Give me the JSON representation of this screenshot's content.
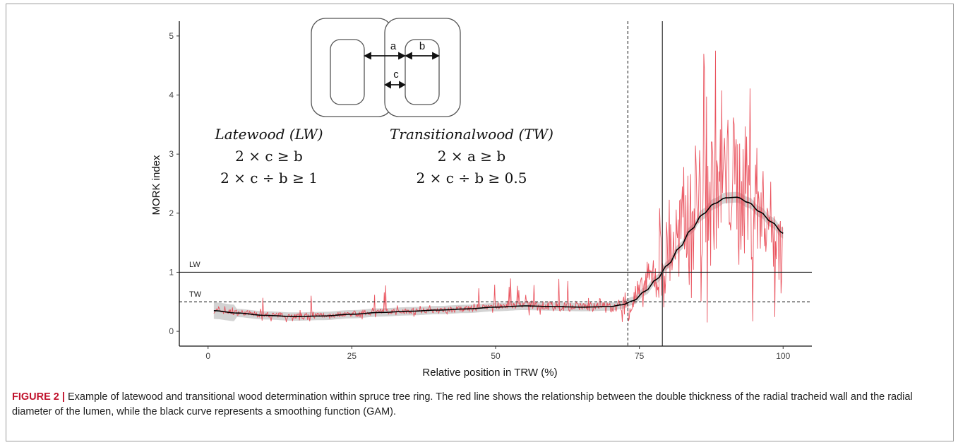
{
  "chart_data": {
    "type": "line",
    "xlabel": "Relative position in TRW (%)",
    "ylabel": "MORK index",
    "xlim": [
      -5,
      105
    ],
    "ylim": [
      -0.25,
      5.25
    ],
    "x_ticks": [
      "0",
      "25",
      "50",
      "75",
      "100"
    ],
    "y_ticks": [
      "0",
      "1",
      "2",
      "3",
      "4",
      "5"
    ],
    "grid": false,
    "reference_lines": {
      "horizontal": [
        {
          "label": "LW",
          "y": 1,
          "style": "solid"
        },
        {
          "label": "TW",
          "y": 0.5,
          "style": "dashed"
        }
      ],
      "vertical": [
        {
          "x": 73,
          "style": "dashed"
        },
        {
          "x": 79,
          "style": "solid"
        }
      ]
    },
    "series": [
      {
        "role": "observed MORK index",
        "color": "#e8424f",
        "x": [
          1,
          5,
          10,
          15,
          20,
          25,
          30,
          35,
          40,
          45,
          50,
          55,
          60,
          65,
          70,
          73,
          75,
          77,
          79,
          81,
          83,
          85,
          87,
          89,
          91,
          93,
          95,
          97,
          99,
          100
        ],
        "y": [
          0.35,
          0.32,
          0.28,
          0.26,
          0.27,
          0.3,
          0.33,
          0.35,
          0.36,
          0.38,
          0.42,
          0.44,
          0.43,
          0.42,
          0.4,
          0.45,
          0.62,
          0.9,
          1.1,
          1.5,
          1.8,
          2.2,
          2.4,
          2.5,
          2.6,
          2.4,
          2.2,
          2.0,
          1.6,
          1.2
        ]
      },
      {
        "role": "GAM smoothing curve",
        "color": "#000000",
        "band_color": "#c8c8c8",
        "x": [
          1,
          5,
          10,
          15,
          20,
          25,
          30,
          35,
          40,
          45,
          50,
          55,
          60,
          65,
          70,
          72,
          74,
          76,
          78,
          80,
          82,
          84,
          86,
          88,
          90,
          92,
          94,
          96,
          98,
          100
        ],
        "y": [
          0.35,
          0.31,
          0.27,
          0.25,
          0.26,
          0.29,
          0.32,
          0.34,
          0.36,
          0.38,
          0.41,
          0.43,
          0.42,
          0.41,
          0.42,
          0.45,
          0.52,
          0.68,
          0.88,
          1.13,
          1.42,
          1.72,
          1.98,
          2.16,
          2.26,
          2.27,
          2.18,
          2.02,
          1.85,
          1.66
        ]
      }
    ]
  },
  "inset": {
    "diagram_labels": [
      "a",
      "b",
      "c"
    ],
    "formulas": [
      {
        "heading": "Latewood (LW)",
        "line1": "2 × c ≥ b",
        "line2": "2 × c ÷ b ≥ 1"
      },
      {
        "heading": "Transitionalwood (TW)",
        "line1": "2 × a ≥ b",
        "line2": "2 × c ÷ b ≥ 0.5"
      }
    ]
  },
  "caption": {
    "label": "FIGURE 2 |",
    "text": "Example of latewood and transitional wood determination within spruce tree ring. The red line shows the relationship between the double thickness of the radial tracheid wall and the radial diameter of the lumen, while the black curve represents a smoothing function (GAM)."
  },
  "colors": {
    "observed": "#e8424f",
    "smooth": "#000000",
    "band": "#c8c8c8"
  }
}
